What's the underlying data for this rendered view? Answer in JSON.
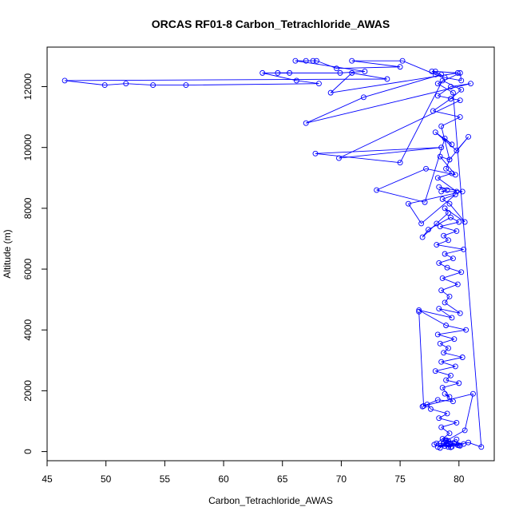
{
  "chart_data": {
    "type": "line",
    "title": "ORCAS RF01-8 Carbon_Tetrachloride_AWAS",
    "xlabel": "Carbon_Tetrachloride_AWAS",
    "ylabel": "Altitude (m)",
    "xlim": [
      45,
      83
    ],
    "ylim": [
      -300,
      13300
    ],
    "xticks": [
      45,
      50,
      55,
      60,
      65,
      70,
      75,
      80
    ],
    "yticks": [
      0,
      2000,
      4000,
      6000,
      8000,
      10000,
      12000
    ],
    "series_color": "#0000ff",
    "markers": "open-circle",
    "series": [
      {
        "x": [
          78.4,
          79.1,
          78.8,
          79.6,
          78.2,
          79.9,
          78.7,
          79.3,
          77.9,
          80.1,
          78.6,
          79.4,
          78.9,
          80.4,
          78.1,
          79.2,
          78.5,
          79.8,
          78.3,
          79.0,
          77.6,
          77.3,
          76.9,
          78.2,
          79.5,
          78.8,
          79.2,
          78.6,
          80.0,
          78.9,
          79.3,
          78.0,
          79.7,
          78.5,
          80.3,
          78.7,
          79.1,
          78.4,
          79.6,
          78.2,
          80.6,
          78.9,
          76.6,
          79.4,
          78.3,
          80.1,
          78.8,
          79.2,
          78.5,
          79.9,
          78.6,
          80.2,
          79.0,
          78.3,
          79.5,
          78.8,
          80.4,
          78.1,
          79.1,
          78.7,
          79.8,
          78.4,
          80.0,
          79.3,
          77.4,
          76.9,
          78.1,
          79.1,
          78.8,
          80.5,
          79.2,
          78.6,
          79.7,
          76.8,
          75.7,
          80.3,
          78.3,
          79.0,
          78.5,
          79.8,
          78.2,
          79.4,
          78.9,
          79.2,
          78.4,
          79.7,
          77.2,
          73.0,
          77.1,
          78.8,
          79.4,
          78.0,
          79.8,
          80.8,
          79.2,
          78.5,
          80.1,
          77.8,
          79.3,
          80.2,
          78.6,
          75.0,
          67.8,
          78.5,
          69.8,
          80.1,
          78.2,
          79.3,
          81.0,
          67.0,
          71.9,
          78.5,
          77.7,
          78.0,
          79.9,
          69.1,
          70.9,
          73.9,
          46.5,
          49.9,
          51.7,
          54.0,
          56.8,
          68.1,
          66.2,
          63.3,
          65.6,
          64.6,
          69.9,
          72.0,
          66.1,
          67.0,
          67.6,
          67.9,
          69.6,
          75.0,
          70.9,
          75.2,
          78.0,
          78.8,
          80.2,
          80.1,
          78.2,
          79.5,
          81.9,
          80.8,
          79.1,
          78.7,
          79.8,
          80.0,
          78.9,
          80.5,
          81.2,
          77.0,
          76.6
        ],
        "y": [
          120,
          350,
          180,
          260,
          150,
          210,
          300,
          140,
          230,
          190,
          420,
          160,
          380,
          250,
          270,
          600,
          800,
          950,
          1100,
          1250,
          1400,
          1550,
          1480,
          1700,
          1650,
          1900,
          1800,
          2100,
          2250,
          2350,
          2500,
          2650,
          2800,
          2950,
          3100,
          3250,
          3400,
          3550,
          3700,
          3850,
          4000,
          4150,
          4650,
          4400,
          4700,
          4550,
          4900,
          5100,
          5300,
          5500,
          5700,
          5900,
          6050,
          6200,
          6350,
          6500,
          6650,
          6800,
          6950,
          7100,
          7250,
          7400,
          7550,
          7700,
          7300,
          7050,
          7500,
          7850,
          8000,
          7550,
          8150,
          8300,
          8450,
          7500,
          8150,
          8550,
          8700,
          8600,
          8550,
          8550,
          9000,
          9150,
          9300,
          9600,
          9700,
          9100,
          9300,
          8600,
          8200,
          10300,
          10100,
          10500,
          9900,
          10350,
          9600,
          10700,
          11000,
          11200,
          11600,
          11900,
          12200,
          9500,
          9800,
          10000,
          9650,
          11550,
          11700,
          12000,
          12100,
          10800,
          11650,
          12400,
          12500,
          12500,
          12450,
          11800,
          12450,
          12250,
          12200,
          12050,
          12100,
          12050,
          12050,
          12100,
          12200,
          12450,
          12450,
          12450,
          12450,
          12500,
          12850,
          12850,
          12850,
          12850,
          12600,
          12650,
          12850,
          12850,
          12400,
          12300,
          12200,
          12450,
          12100,
          11800,
          150,
          300,
          150,
          250,
          400,
          200,
          350,
          700,
          1900,
          1500,
          4600
        ]
      }
    ]
  }
}
